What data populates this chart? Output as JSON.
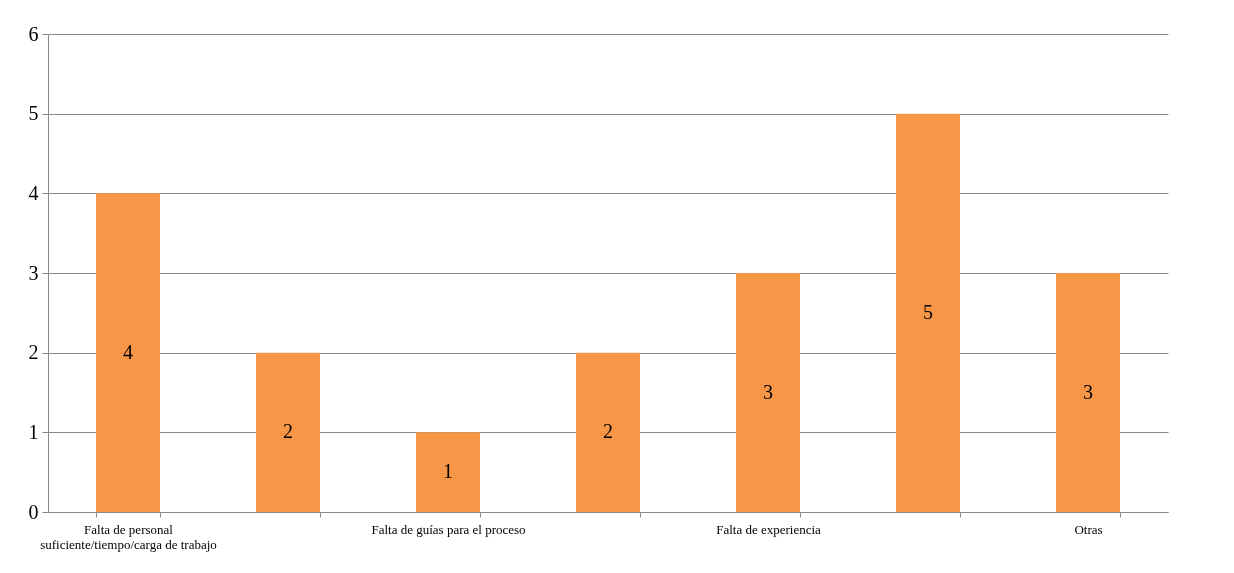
{
  "chart_data": {
    "type": "bar",
    "categories": [
      "Falta de personal suficiente/tiempo/carga de trabajo",
      null,
      "Falta de guías para el proceso",
      null,
      "Falta de experiencia",
      null,
      "Otras"
    ],
    "values": [
      4,
      2,
      1,
      2,
      3,
      5,
      3
    ],
    "color": "#f79646",
    "ylim": [
      0,
      6
    ],
    "yticks": [
      0,
      1,
      2,
      3,
      4,
      5,
      6
    ],
    "grid": "y",
    "data_labels": true
  }
}
